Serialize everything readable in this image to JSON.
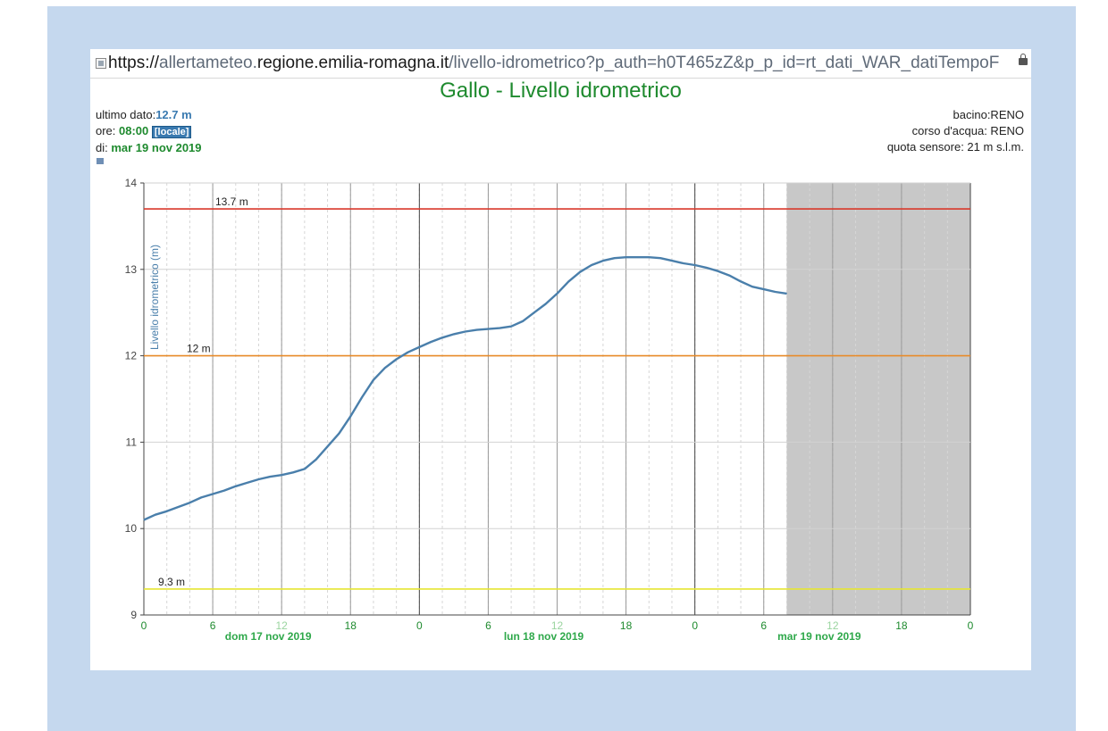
{
  "browser": {
    "url_scheme": "https://",
    "url_sub": "allertameteo.",
    "url_domain": "regione.emilia-romagna.it",
    "url_path": "/livello-idrometrico?p_auth=h0T465zZ&p_p_id=rt_dati_WAR_datiTempoF"
  },
  "station": {
    "ultimo_label": "ultimo dato:",
    "ultimo_value": "12.7 m",
    "ore_label": "ore: ",
    "ore_value": "08:00",
    "locale_tag": "[locale]",
    "di_label": "di: ",
    "di_value": "mar 19 nov 2019",
    "bacino": "bacino:RENO",
    "corso": "corso d'acqua: RENO",
    "quota": "quota sensore: 21 m s.l.m."
  },
  "colors": {
    "series": "#4a7fab",
    "threshold_red": "#d9382b",
    "threshold_orange": "#e88a28",
    "threshold_yellow": "#e6e632",
    "title_green": "#1e8a2e",
    "forecast_shade": "#c8c8c8"
  },
  "chart_data": {
    "type": "line",
    "title": "Gallo - Livello idrometrico",
    "ylabel": "Livello idrometrico (m)",
    "ylim": [
      9,
      14
    ],
    "yticks": [
      9,
      10,
      11,
      12,
      13,
      14
    ],
    "xlim": [
      "2019-11-17T00:00",
      "2019-11-20T00:00"
    ],
    "xticks": [
      {
        "x": "2019-11-17T00:00",
        "label": "0"
      },
      {
        "x": "2019-11-17T06:00",
        "label": "6"
      },
      {
        "x": "2019-11-17T12:00",
        "label": "12"
      },
      {
        "x": "2019-11-17T18:00",
        "label": "18"
      },
      {
        "x": "2019-11-18T00:00",
        "label": "0"
      },
      {
        "x": "2019-11-18T06:00",
        "label": "6"
      },
      {
        "x": "2019-11-18T12:00",
        "label": "12"
      },
      {
        "x": "2019-11-18T18:00",
        "label": "18"
      },
      {
        "x": "2019-11-19T00:00",
        "label": "0"
      },
      {
        "x": "2019-11-19T06:00",
        "label": "6"
      },
      {
        "x": "2019-11-19T12:00",
        "label": "12"
      },
      {
        "x": "2019-11-19T18:00",
        "label": "18"
      },
      {
        "x": "2019-11-20T00:00",
        "label": "0"
      }
    ],
    "day_labels": [
      {
        "x": "2019-11-17T12:00",
        "label": "dom 17 nov 2019"
      },
      {
        "x": "2019-11-18T12:00",
        "label": "lun 18 nov 2019"
      },
      {
        "x": "2019-11-19T12:00",
        "label": "mar 19 nov 2019"
      }
    ],
    "thresholds": [
      {
        "value": 13.7,
        "label": "13.7 m",
        "color": "#d9382b"
      },
      {
        "value": 12,
        "label": "12 m",
        "color": "#e88a28"
      },
      {
        "value": 9.3,
        "label": "9.3 m",
        "color": "#e6e632"
      }
    ],
    "shaded_from": "2019-11-19T08:00",
    "grid": true,
    "series": [
      {
        "color": "#4a7fab",
        "x": [
          "2019-11-17T00:00",
          "2019-11-17T01:00",
          "2019-11-17T02:00",
          "2019-11-17T03:00",
          "2019-11-17T04:00",
          "2019-11-17T05:00",
          "2019-11-17T06:00",
          "2019-11-17T07:00",
          "2019-11-17T08:00",
          "2019-11-17T09:00",
          "2019-11-17T10:00",
          "2019-11-17T11:00",
          "2019-11-17T12:00",
          "2019-11-17T13:00",
          "2019-11-17T14:00",
          "2019-11-17T15:00",
          "2019-11-17T16:00",
          "2019-11-17T17:00",
          "2019-11-17T18:00",
          "2019-11-17T19:00",
          "2019-11-17T20:00",
          "2019-11-17T21:00",
          "2019-11-17T22:00",
          "2019-11-17T23:00",
          "2019-11-18T00:00",
          "2019-11-18T01:00",
          "2019-11-18T02:00",
          "2019-11-18T03:00",
          "2019-11-18T04:00",
          "2019-11-18T05:00",
          "2019-11-18T06:00",
          "2019-11-18T07:00",
          "2019-11-18T08:00",
          "2019-11-18T09:00",
          "2019-11-18T10:00",
          "2019-11-18T11:00",
          "2019-11-18T12:00",
          "2019-11-18T13:00",
          "2019-11-18T14:00",
          "2019-11-18T15:00",
          "2019-11-18T16:00",
          "2019-11-18T17:00",
          "2019-11-18T18:00",
          "2019-11-18T19:00",
          "2019-11-18T20:00",
          "2019-11-18T21:00",
          "2019-11-18T22:00",
          "2019-11-18T23:00",
          "2019-11-19T00:00",
          "2019-11-19T01:00",
          "2019-11-19T02:00",
          "2019-11-19T03:00",
          "2019-11-19T04:00",
          "2019-11-19T05:00",
          "2019-11-19T06:00",
          "2019-11-19T07:00",
          "2019-11-19T08:00"
        ],
        "y": [
          10.1,
          10.16,
          10.2,
          10.25,
          10.3,
          10.36,
          10.4,
          10.44,
          10.49,
          10.53,
          10.57,
          10.6,
          10.62,
          10.65,
          10.69,
          10.8,
          10.95,
          11.1,
          11.3,
          11.52,
          11.72,
          11.86,
          11.96,
          12.04,
          12.1,
          12.16,
          12.21,
          12.25,
          12.28,
          12.3,
          12.31,
          12.32,
          12.34,
          12.4,
          12.5,
          12.6,
          12.72,
          12.86,
          12.97,
          13.05,
          13.1,
          13.13,
          13.14,
          13.14,
          13.14,
          13.13,
          13.1,
          13.07,
          13.05,
          13.02,
          12.98,
          12.93,
          12.86,
          12.8,
          12.77,
          12.74,
          12.72
        ]
      }
    ]
  }
}
